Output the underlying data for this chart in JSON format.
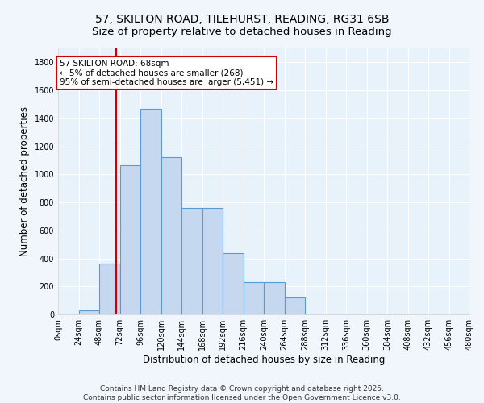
{
  "title_line1": "57, SKILTON ROAD, TILEHURST, READING, RG31 6SB",
  "title_line2": "Size of property relative to detached houses in Reading",
  "xlabel": "Distribution of detached houses by size in Reading",
  "ylabel": "Number of detached properties",
  "bin_edges": [
    0,
    24,
    48,
    72,
    96,
    120,
    144,
    168,
    192,
    216,
    240,
    264,
    288,
    312,
    336,
    360,
    384,
    408,
    432,
    456,
    480
  ],
  "bar_heights": [
    0,
    30,
    360,
    1065,
    1470,
    1120,
    760,
    760,
    435,
    230,
    230,
    120,
    0,
    0,
    0,
    0,
    0,
    0,
    0,
    0
  ],
  "bar_color": "#c5d8f0",
  "bar_edge_color": "#5b9bd5",
  "background_color": "#e8f2fb",
  "grid_color": "#ffffff",
  "property_size": 68,
  "red_line_color": "#cc0000",
  "annotation_text": "57 SKILTON ROAD: 68sqm\n← 5% of detached houses are smaller (268)\n95% of semi-detached houses are larger (5,451) →",
  "annotation_box_color": "#ffffff",
  "annotation_border_color": "#cc0000",
  "ylim": [
    0,
    1900
  ],
  "xlim": [
    0,
    480
  ],
  "yticks": [
    0,
    200,
    400,
    600,
    800,
    1000,
    1200,
    1400,
    1600,
    1800
  ],
  "xtick_labels": [
    "0sqm",
    "24sqm",
    "48sqm",
    "72sqm",
    "96sqm",
    "120sqm",
    "144sqm",
    "168sqm",
    "192sqm",
    "216sqm",
    "240sqm",
    "264sqm",
    "288sqm",
    "312sqm",
    "336sqm",
    "360sqm",
    "384sqm",
    "408sqm",
    "432sqm",
    "456sqm",
    "480sqm"
  ],
  "footnote": "Contains HM Land Registry data © Crown copyright and database right 2025.\nContains public sector information licensed under the Open Government Licence v3.0.",
  "title_fontsize": 10,
  "subtitle_fontsize": 9.5,
  "axis_label_fontsize": 8.5,
  "tick_fontsize": 7,
  "annotation_fontsize": 7.5,
  "footnote_fontsize": 6.5
}
